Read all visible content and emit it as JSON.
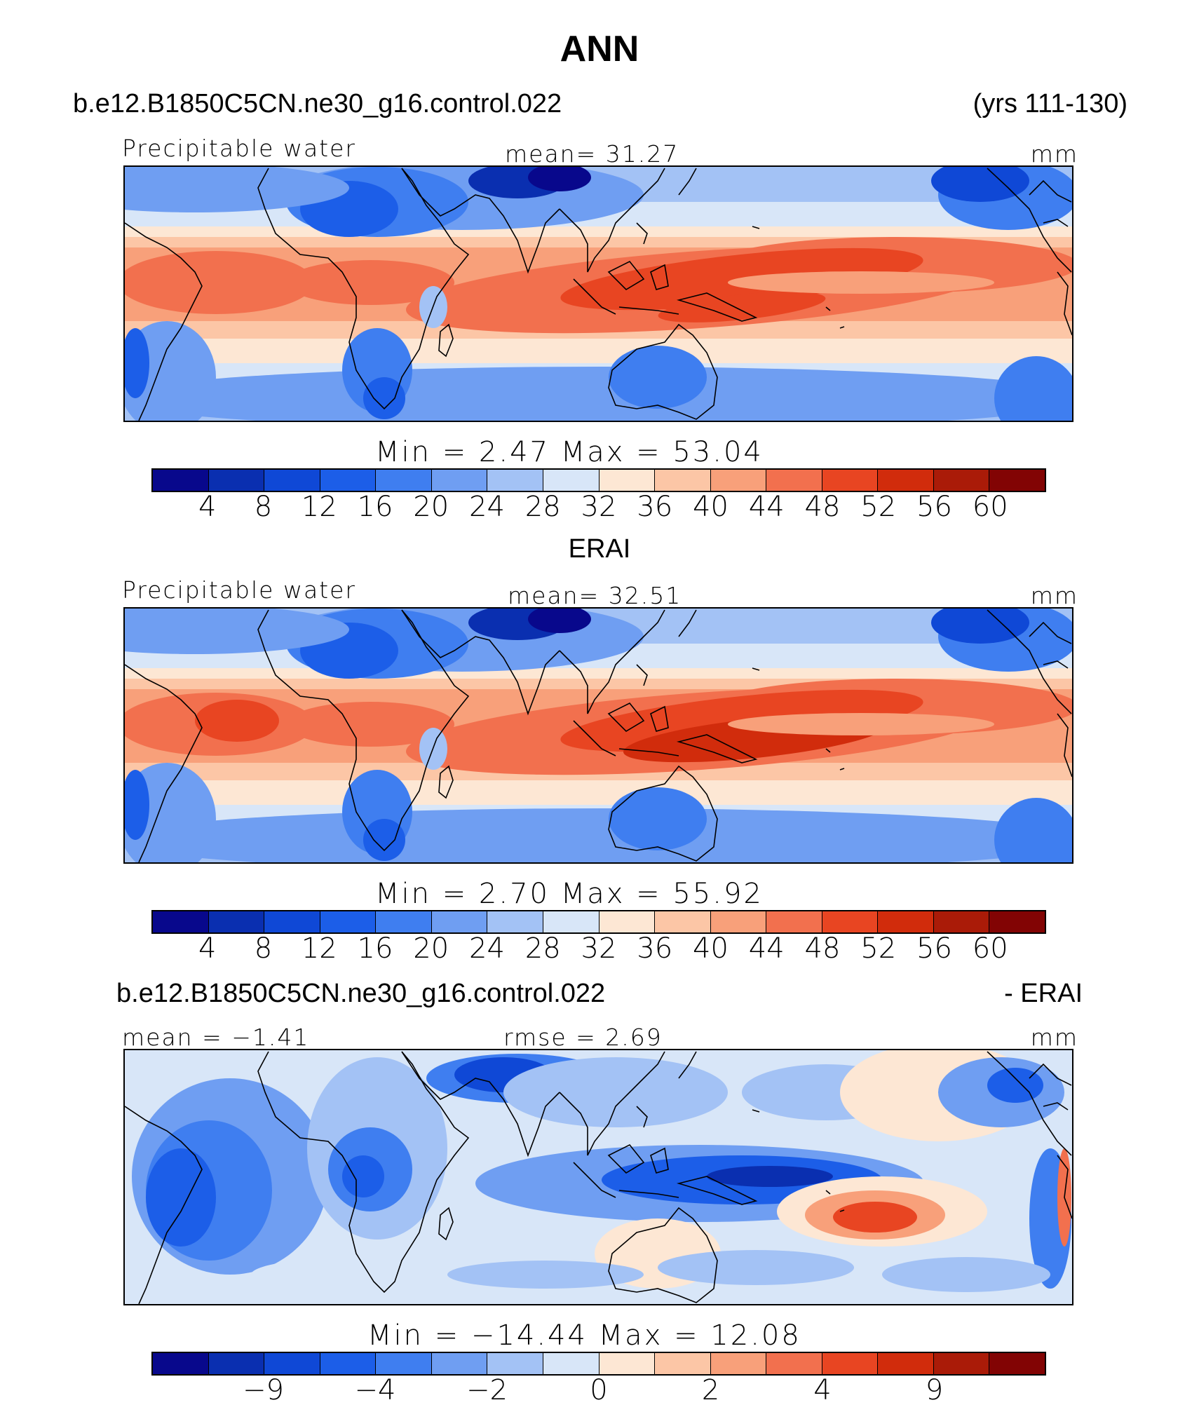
{
  "header": {
    "title": "ANN",
    "case_name": "b.e12.B1850C5CN.ne30_g16.control.022",
    "years": "(yrs 111-130)"
  },
  "panels": [
    {
      "id": "model",
      "top_left": "Precipitable water",
      "center": "mean=   31.27",
      "units": "mm",
      "minmax": "Min  =     2.47  Max  =    53.04"
    },
    {
      "id": "obs",
      "section_title": "ERAI",
      "top_left": "Precipitable water",
      "center": "mean=   32.51",
      "units": "mm",
      "minmax": "Min  =     2.70  Max  =    55.92"
    },
    {
      "id": "diff",
      "section_title_left": "b.e12.B1850C5CN.ne30_g16.control.022",
      "section_title_right": "- ERAI",
      "top_left": "mean  =   −1.41",
      "center": "rmse  =     2.69",
      "units": "mm",
      "minmax": "Min  =  −14.44  Max  =    12.08"
    }
  ],
  "colorbar": {
    "colors": [
      "#08088c",
      "#0a2fb0",
      "#0f48d6",
      "#1c5ee8",
      "#3f7ef0",
      "#6f9ef2",
      "#a3c2f5",
      "#d8e6f8",
      "#fde7d4",
      "#fcc6a6",
      "#f8a07a",
      "#f2704e",
      "#e84522",
      "#d12c0c",
      "#aa1b08",
      "#820404"
    ],
    "ticks_abs": [
      "4",
      "8",
      "12",
      "16",
      "20",
      "24",
      "28",
      "32",
      "36",
      "40",
      "44",
      "48",
      "52",
      "56",
      "60"
    ],
    "ticks_diff": [
      {
        "label": "−9",
        "index": 1
      },
      {
        "label": "−4",
        "index": 3
      },
      {
        "label": "−2",
        "index": 5
      },
      {
        "label": "0",
        "index": 7
      },
      {
        "label": "2",
        "index": 9
      },
      {
        "label": "4",
        "index": 11
      },
      {
        "label": "9",
        "index": 13
      }
    ]
  }
}
